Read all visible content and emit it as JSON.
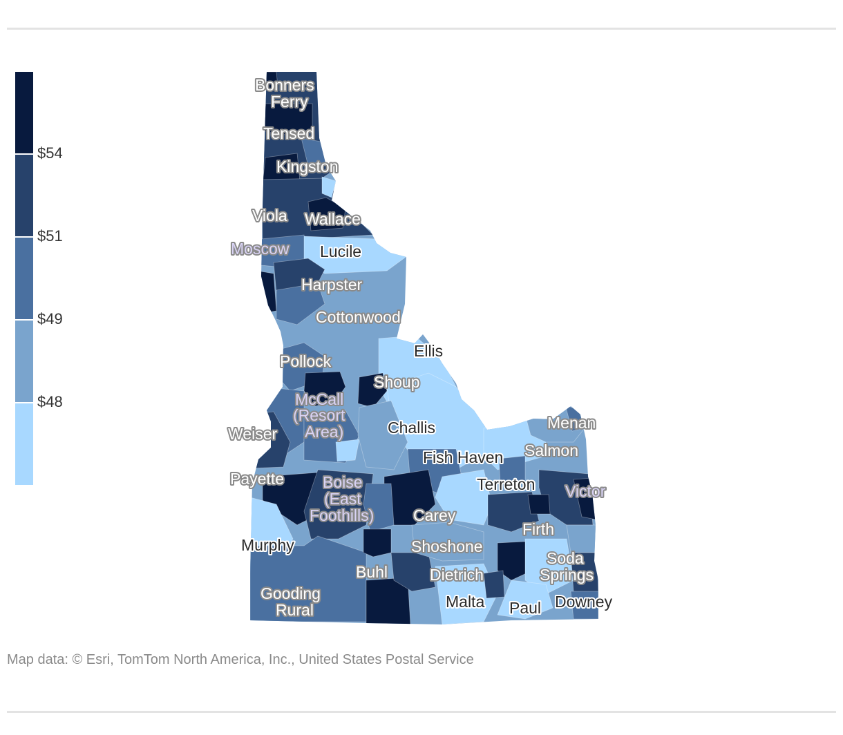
{
  "legend": {
    "ticks": [
      "$54",
      "$51",
      "$49",
      "$48"
    ],
    "colors": [
      "#081a3e",
      "#27426b",
      "#4a70a0",
      "#7aa4cd",
      "#a8d8ff"
    ]
  },
  "places": [
    {
      "name": "Bonners",
      "style": "light"
    },
    {
      "name": "Ferry",
      "style": "light"
    },
    {
      "name": "Tensed",
      "style": "light"
    },
    {
      "name": "Kingston",
      "style": "light"
    },
    {
      "name": "Viola",
      "style": "light"
    },
    {
      "name": "Wallace",
      "style": "light"
    },
    {
      "name": "Moscow",
      "style": "lav"
    },
    {
      "name": "Lucile",
      "style": "dark"
    },
    {
      "name": "Harpster",
      "style": "light"
    },
    {
      "name": "Cottonwood",
      "style": "light"
    },
    {
      "name": "Ellis",
      "style": "dark"
    },
    {
      "name": "Pollock",
      "style": "light"
    },
    {
      "name": "Shoup",
      "style": "light"
    },
    {
      "name": "McCall",
      "style": "lav"
    },
    {
      "name": "(Resort",
      "style": "lav"
    },
    {
      "name": "Area)",
      "style": "lav"
    },
    {
      "name": "Weiser",
      "style": "light"
    },
    {
      "name": "Challis",
      "style": "dark"
    },
    {
      "name": "Menan",
      "style": "light"
    },
    {
      "name": "Fish Haven",
      "style": "dark"
    },
    {
      "name": "Salmon",
      "style": "light"
    },
    {
      "name": "Payette",
      "style": "light"
    },
    {
      "name": "Boise",
      "style": "lav"
    },
    {
      "name": "(East",
      "style": "lav"
    },
    {
      "name": "Foothills)",
      "style": "lav"
    },
    {
      "name": "Terreton",
      "style": "dark"
    },
    {
      "name": "Victor",
      "style": "lav"
    },
    {
      "name": "Carey",
      "style": "light"
    },
    {
      "name": "Firth",
      "style": "light"
    },
    {
      "name": "Murphy",
      "style": "dark"
    },
    {
      "name": "Shoshone",
      "style": "light"
    },
    {
      "name": "Soda",
      "style": "light"
    },
    {
      "name": "Springs",
      "style": "light"
    },
    {
      "name": "Buhl",
      "style": "light"
    },
    {
      "name": "Dietrich",
      "style": "light"
    },
    {
      "name": "Gooding",
      "style": "light"
    },
    {
      "name": "Rural",
      "style": "light"
    },
    {
      "name": "Malta",
      "style": "dark"
    },
    {
      "name": "Paul",
      "style": "dark"
    },
    {
      "name": "Downey",
      "style": "dark"
    }
  ],
  "source": "Map data: © Esri, TomTom North America, Inc., United States Postal Service"
}
